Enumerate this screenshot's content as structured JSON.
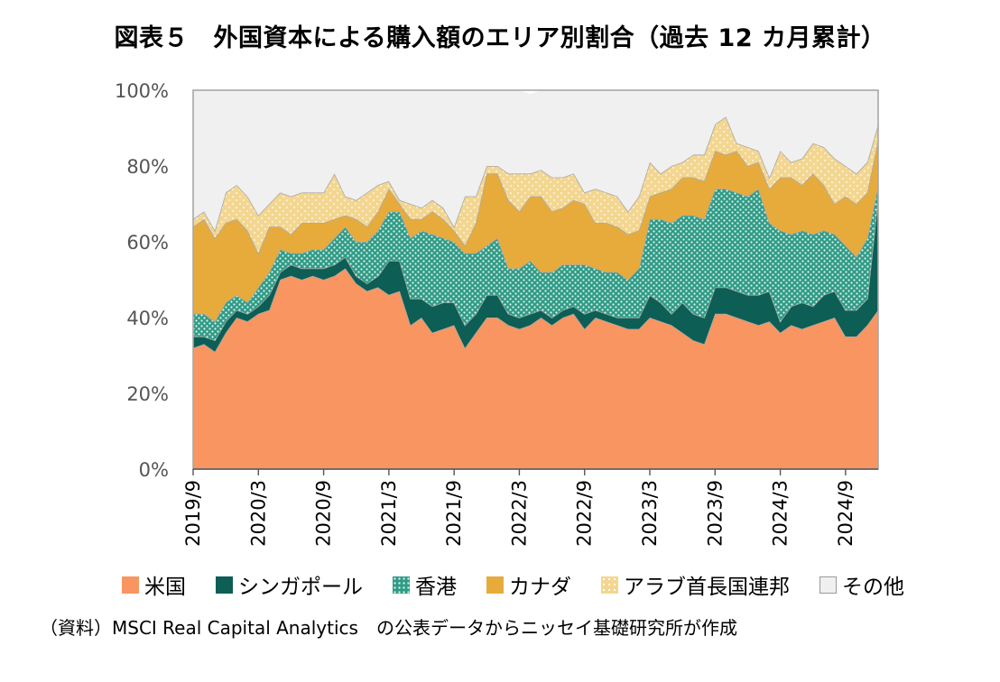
{
  "chart_data": {
    "type": "area",
    "stacked": true,
    "title": "図表５　外国資本による購入額のエリア別割合（過去 12 カ月累計）",
    "xlabel": "",
    "ylabel": "",
    "ylim": [
      0,
      100
    ],
    "y_ticks": [
      "0%",
      "20%",
      "40%",
      "60%",
      "80%",
      "100%"
    ],
    "x_ticks": [
      "2019/9",
      "2020/3",
      "2020/9",
      "2021/3",
      "2021/9",
      "2022/3",
      "2022/9",
      "2023/3",
      "2023/9",
      "2024/3",
      "2024/9"
    ],
    "x_months": [
      "2019/9",
      "2019/10",
      "2019/11",
      "2019/12",
      "2020/1",
      "2020/2",
      "2020/3",
      "2020/4",
      "2020/5",
      "2020/6",
      "2020/7",
      "2020/8",
      "2020/9",
      "2020/10",
      "2020/11",
      "2020/12",
      "2021/1",
      "2021/2",
      "2021/3",
      "2021/4",
      "2021/5",
      "2021/6",
      "2021/7",
      "2021/8",
      "2021/9",
      "2021/10",
      "2021/11",
      "2021/12",
      "2022/1",
      "2022/2",
      "2022/3",
      "2022/4",
      "2022/5",
      "2022/6",
      "2022/7",
      "2022/8",
      "2022/9",
      "2022/10",
      "2022/11",
      "2022/12",
      "2023/1",
      "2023/2",
      "2023/3",
      "2023/4",
      "2023/5",
      "2023/6",
      "2023/7",
      "2023/8",
      "2023/9",
      "2023/10",
      "2023/11",
      "2023/12",
      "2024/1",
      "2024/2",
      "2024/3",
      "2024/4",
      "2024/5",
      "2024/6",
      "2024/7",
      "2024/8",
      "2024/9",
      "2024/10",
      "2024/11",
      "2024/12"
    ],
    "grid": false,
    "legend_position": "bottom",
    "series": [
      {
        "name": "米国",
        "color": "#f89560",
        "values": [
          32,
          33,
          31,
          36,
          40,
          39,
          41,
          42,
          50,
          51,
          50,
          51,
          50,
          51,
          53,
          49,
          47,
          48,
          46,
          47,
          38,
          40,
          36,
          37,
          38,
          32,
          36,
          40,
          40,
          38,
          37,
          38,
          40,
          38,
          40,
          41,
          37,
          40,
          39,
          38,
          37,
          37,
          40,
          39,
          38,
          36,
          34,
          33,
          41,
          41,
          40,
          39,
          38,
          39,
          36,
          38,
          37,
          38,
          39,
          40,
          35,
          35,
          38,
          42
        ]
      },
      {
        "name": "シンガポール",
        "color": "#0d5e54",
        "values": [
          3,
          2,
          3,
          3,
          2,
          2,
          2,
          4,
          2,
          3,
          3,
          2,
          3,
          3,
          3,
          2,
          2,
          3,
          9,
          8,
          7,
          5,
          7,
          7,
          6,
          6,
          5,
          6,
          6,
          3,
          3,
          3,
          2,
          2,
          2,
          2,
          4,
          2,
          2,
          2,
          3,
          3,
          6,
          5,
          3,
          8,
          7,
          7,
          7,
          7,
          7,
          7,
          8,
          8,
          3,
          5,
          7,
          5,
          7,
          7,
          7,
          7,
          7,
          30
        ]
      },
      {
        "name": "香港",
        "color": "#3a9d88",
        "values": [
          6,
          6,
          5,
          5,
          4,
          3,
          5,
          6,
          6,
          3,
          4,
          5,
          5,
          7,
          8,
          9,
          11,
          12,
          13,
          13,
          16,
          18,
          19,
          17,
          16,
          19,
          16,
          13,
          15,
          12,
          13,
          14,
          10,
          12,
          12,
          11,
          13,
          11,
          11,
          12,
          10,
          13,
          20,
          22,
          24,
          23,
          26,
          26,
          26,
          26,
          26,
          26,
          28,
          18,
          24,
          19,
          19,
          19,
          17,
          15,
          17,
          14,
          16,
          3
        ]
      },
      {
        "name": "カナダ",
        "color": "#e7ab3c",
        "values": [
          23,
          25,
          22,
          21,
          20,
          19,
          9,
          12,
          6,
          5,
          8,
          7,
          7,
          5,
          3,
          6,
          4,
          5,
          6,
          2,
          5,
          3,
          6,
          5,
          3,
          2,
          8,
          19,
          17,
          18,
          15,
          17,
          20,
          16,
          15,
          17,
          16,
          12,
          13,
          12,
          12,
          10,
          6,
          7,
          9,
          10,
          10,
          10,
          10,
          9,
          11,
          8,
          7,
          9,
          14,
          15,
          12,
          16,
          12,
          8,
          13,
          14,
          12,
          12
        ]
      },
      {
        "name": "アラブ首長国連邦",
        "color": "#f2d18b",
        "values": [
          2,
          2,
          2,
          8,
          9,
          9,
          10,
          6,
          9,
          10,
          8,
          8,
          8,
          12,
          5,
          5,
          9,
          7,
          2,
          1,
          4,
          3,
          3,
          3,
          1,
          13,
          7,
          2,
          2,
          7,
          10,
          6,
          7,
          9,
          8,
          7,
          3,
          9,
          8,
          8,
          6,
          9,
          9,
          5,
          6,
          4,
          6,
          7,
          7,
          10,
          2,
          5,
          3,
          3,
          7,
          4,
          7,
          8,
          10,
          12,
          8,
          8,
          8,
          4
        ]
      },
      {
        "name": "その他",
        "color": "#f0f0f0",
        "values": [
          34,
          32,
          37,
          27,
          25,
          28,
          33,
          30,
          27,
          28,
          27,
          27,
          27,
          22,
          28,
          29,
          27,
          25,
          24,
          29,
          30,
          31,
          29,
          31,
          36,
          28,
          28,
          20,
          20,
          22,
          22,
          21,
          21,
          23,
          23,
          22,
          27,
          26,
          27,
          28,
          32,
          28,
          19,
          22,
          20,
          19,
          17,
          17,
          9,
          7,
          14,
          15,
          16,
          23,
          16,
          19,
          18,
          14,
          15,
          18,
          20,
          22,
          19,
          9
        ]
      }
    ]
  },
  "source_note": "（資料）MSCI Real Capital Analytics　の公表データからニッセイ基礎研究所が作成"
}
